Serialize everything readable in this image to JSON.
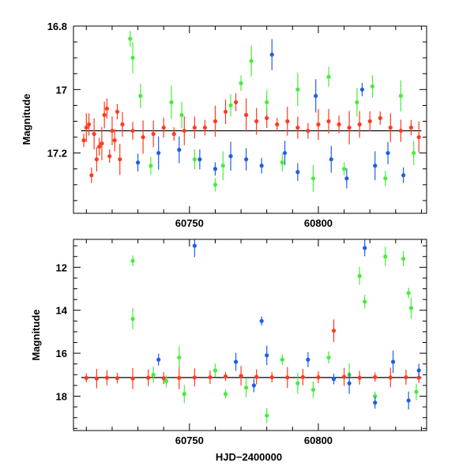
{
  "chart_data": [
    {
      "type": "scatter",
      "panel": "top",
      "title": "",
      "xlabel": "",
      "ylabel": "Magnitude",
      "xlim": [
        60705,
        60842
      ],
      "ylim": [
        17.39,
        16.8
      ],
      "y_inverted": true,
      "grid": false,
      "legend": "none",
      "x_ticks": [
        60750,
        60800
      ],
      "x_tick_labels": [
        "60750",
        "60800"
      ],
      "y_ticks": [
        16.8,
        17.0,
        17.2
      ],
      "y_tick_labels": [
        "16.8",
        "17",
        "17.2"
      ],
      "reference_line": {
        "y": 17.13,
        "x_range": [
          60708,
          60840
        ]
      },
      "series": [
        {
          "color": "#ff3a1f",
          "points": [
            [
              60709,
              17.16
            ],
            [
              60710,
              17.12
            ],
            [
              60711,
              17.11
            ],
            [
              60712,
              17.27
            ],
            [
              60713,
              17.14
            ],
            [
              60714,
              17.22
            ],
            [
              60715,
              17.18
            ],
            [
              60716,
              17.17
            ],
            [
              60717,
              17.08
            ],
            [
              60718,
              17.06
            ],
            [
              60719,
              17.21
            ],
            [
              60720,
              17.13
            ],
            [
              60721,
              17.16
            ],
            [
              60722,
              17.07
            ],
            [
              60723,
              17.22
            ],
            [
              60724,
              17.11
            ],
            [
              60728,
              17.13
            ],
            [
              60732,
              17.15
            ],
            [
              60736,
              17.14
            ],
            [
              60740,
              17.12
            ],
            [
              60744,
              17.14
            ],
            [
              60748,
              17.13
            ],
            [
              60752,
              17.12
            ],
            [
              60756,
              17.12
            ],
            [
              60760,
              17.1
            ],
            [
              60764,
              17.07
            ],
            [
              60768,
              17.04
            ],
            [
              60772,
              17.08
            ],
            [
              60776,
              17.1
            ],
            [
              60780,
              17.09
            ],
            [
              60784,
              17.11
            ],
            [
              60788,
              17.1
            ],
            [
              60792,
              17.12
            ],
            [
              60796,
              17.13
            ],
            [
              60800,
              17.11
            ],
            [
              60804,
              17.1
            ],
            [
              60808,
              17.11
            ],
            [
              60812,
              17.12
            ],
            [
              60816,
              17.11
            ],
            [
              60820,
              17.1
            ],
            [
              60824,
              17.09
            ],
            [
              60828,
              17.12
            ],
            [
              60832,
              17.13
            ],
            [
              60836,
              17.12
            ],
            [
              60839,
              17.15
            ]
          ]
        },
        {
          "color": "#44ee3a",
          "points": [
            [
              60727,
              16.84
            ],
            [
              60728,
              16.9
            ],
            [
              60731,
              17.02
            ],
            [
              60735,
              17.24
            ],
            [
              60743,
              17.04
            ],
            [
              60747,
              17.08
            ],
            [
              60752,
              17.22
            ],
            [
              60760,
              17.3
            ],
            [
              60763,
              17.24
            ],
            [
              60766,
              17.05
            ],
            [
              60770,
              16.98
            ],
            [
              60774,
              16.91
            ],
            [
              60780,
              17.04
            ],
            [
              60786,
              17.23
            ],
            [
              60792,
              17.0
            ],
            [
              60798,
              17.28
            ],
            [
              60804,
              16.96
            ],
            [
              60810,
              17.25
            ],
            [
              60815,
              17.04
            ],
            [
              60821,
              16.99
            ],
            [
              60826,
              17.28
            ],
            [
              60832,
              17.02
            ],
            [
              60837,
              17.2
            ]
          ]
        },
        {
          "color": "#1f5fe0",
          "points": [
            [
              60730,
              17.23
            ],
            [
              60738,
              17.2
            ],
            [
              60746,
              17.19
            ],
            [
              60754,
              17.22
            ],
            [
              60760,
              17.25
            ],
            [
              60766,
              17.21
            ],
            [
              60772,
              17.22
            ],
            [
              60778,
              17.24
            ],
            [
              60782,
              16.89
            ],
            [
              60787,
              17.2
            ],
            [
              60792,
              17.26
            ],
            [
              60799,
              17.02
            ],
            [
              60805,
              17.22
            ],
            [
              60811,
              17.28
            ],
            [
              60817,
              17.0
            ],
            [
              60822,
              17.24
            ],
            [
              60827,
              17.2
            ],
            [
              60833,
              17.27
            ]
          ]
        }
      ]
    },
    {
      "type": "scatter",
      "panel": "bottom",
      "title": "",
      "xlabel": "HJD−2400000",
      "ylabel": "Magnitude",
      "xlim": [
        60705,
        60842
      ],
      "ylim": [
        19.6,
        10.7
      ],
      "y_inverted": true,
      "grid": false,
      "legend": "none",
      "x_ticks": [
        60750,
        60800
      ],
      "x_tick_labels": [
        "60750",
        "60800"
      ],
      "y_ticks": [
        12,
        14,
        16,
        18
      ],
      "y_tick_labels": [
        "12",
        "14",
        "16",
        "18"
      ],
      "reference_line": {
        "y": 17.13,
        "x_range": [
          60708,
          60840
        ]
      },
      "series": [
        {
          "color": "#ff3a1f",
          "points": [
            [
              60710,
              17.15
            ],
            [
              60714,
              17.18
            ],
            [
              60718,
              17.14
            ],
            [
              60722,
              17.16
            ],
            [
              60728,
              17.18
            ],
            [
              60734,
              17.14
            ],
            [
              60740,
              17.16
            ],
            [
              60746,
              17.15
            ],
            [
              60752,
              17.13
            ],
            [
              60758,
              17.12
            ],
            [
              60764,
              17.08
            ],
            [
              60770,
              17.05
            ],
            [
              60776,
              17.1
            ],
            [
              60782,
              17.12
            ],
            [
              60788,
              17.13
            ],
            [
              60794,
              17.11
            ],
            [
              60800,
              17.12
            ],
            [
              60806,
              14.95
            ],
            [
              60810,
              17.1
            ],
            [
              60816,
              17.14
            ],
            [
              60822,
              17.11
            ],
            [
              60828,
              17.13
            ],
            [
              60834,
              17.12
            ],
            [
              60839,
              17.14
            ]
          ]
        },
        {
          "color": "#44ee3a",
          "points": [
            [
              60728,
              11.7
            ],
            [
              60728,
              14.4
            ],
            [
              60736,
              17.0
            ],
            [
              60741,
              17.3
            ],
            [
              60746,
              16.2
            ],
            [
              60748,
              17.9
            ],
            [
              60760,
              16.8
            ],
            [
              60764,
              17.9
            ],
            [
              60772,
              17.6
            ],
            [
              60780,
              18.9
            ],
            [
              60786,
              16.3
            ],
            [
              60792,
              17.4
            ],
            [
              60798,
              17.7
            ],
            [
              60804,
              16.2
            ],
            [
              60812,
              17.0
            ],
            [
              60816,
              12.4
            ],
            [
              60818,
              13.6
            ],
            [
              60822,
              18.0
            ],
            [
              60826,
              11.5
            ],
            [
              60833,
              11.6
            ],
            [
              60835,
              13.2
            ],
            [
              60836,
              13.9
            ],
            [
              60838,
              17.8
            ]
          ]
        },
        {
          "color": "#1f5fe0",
          "points": [
            [
              60738,
              16.3
            ],
            [
              60752,
              11.0
            ],
            [
              60768,
              16.4
            ],
            [
              60775,
              17.5
            ],
            [
              60778,
              14.5
            ],
            [
              60780,
              16.1
            ],
            [
              60796,
              16.3
            ],
            [
              60806,
              17.2
            ],
            [
              60812,
              17.4
            ],
            [
              60818,
              11.1
            ],
            [
              60822,
              18.3
            ],
            [
              60829,
              16.4
            ],
            [
              60835,
              18.2
            ],
            [
              60839,
              16.8
            ]
          ]
        }
      ]
    }
  ]
}
